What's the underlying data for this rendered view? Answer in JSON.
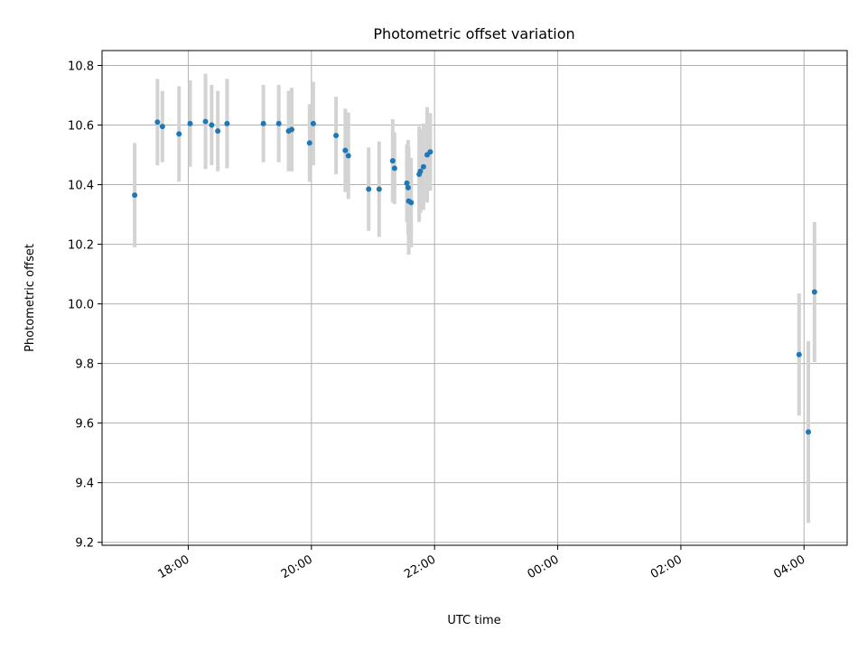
{
  "chart_data": {
    "type": "scatter",
    "title": "Photometric offset variation",
    "xlabel": "UTC time",
    "ylabel": "Photometric offset",
    "x_ticks": [
      "18:00",
      "20:00",
      "22:00",
      "00:00",
      "02:00",
      "04:00"
    ],
    "x_tick_hours": [
      18,
      20,
      22,
      24,
      26,
      28
    ],
    "xlim_hours": [
      16.6,
      28.7
    ],
    "y_ticks": [
      "9.2",
      "9.4",
      "9.6",
      "9.8",
      "10.0",
      "10.2",
      "10.4",
      "10.6",
      "10.8"
    ],
    "y_tick_values": [
      9.2,
      9.4,
      9.6,
      9.8,
      10.0,
      10.2,
      10.4,
      10.6,
      10.8
    ],
    "ylim": [
      9.19,
      10.85
    ],
    "grid": true,
    "marker_color": "#1f77b4",
    "errorbar_color": "#d3d3d3",
    "points": [
      {
        "t": 17.13,
        "y": 10.365,
        "err": 0.175
      },
      {
        "t": 17.5,
        "y": 10.61,
        "err": 0.145
      },
      {
        "t": 17.58,
        "y": 10.595,
        "err": 0.12
      },
      {
        "t": 17.85,
        "y": 10.57,
        "err": 0.16
      },
      {
        "t": 18.03,
        "y": 10.605,
        "err": 0.145
      },
      {
        "t": 18.28,
        "y": 10.612,
        "err": 0.16
      },
      {
        "t": 18.38,
        "y": 10.6,
        "err": 0.135
      },
      {
        "t": 18.48,
        "y": 10.58,
        "err": 0.135
      },
      {
        "t": 18.63,
        "y": 10.605,
        "err": 0.15
      },
      {
        "t": 19.22,
        "y": 10.605,
        "err": 0.13
      },
      {
        "t": 19.47,
        "y": 10.605,
        "err": 0.13
      },
      {
        "t": 19.63,
        "y": 10.58,
        "err": 0.135
      },
      {
        "t": 19.68,
        "y": 10.585,
        "err": 0.14
      },
      {
        "t": 19.97,
        "y": 10.54,
        "err": 0.13
      },
      {
        "t": 20.03,
        "y": 10.605,
        "err": 0.14
      },
      {
        "t": 20.4,
        "y": 10.565,
        "err": 0.13
      },
      {
        "t": 20.55,
        "y": 10.515,
        "err": 0.14
      },
      {
        "t": 20.6,
        "y": 10.497,
        "err": 0.145
      },
      {
        "t": 20.93,
        "y": 10.385,
        "err": 0.14
      },
      {
        "t": 21.1,
        "y": 10.385,
        "err": 0.16
      },
      {
        "t": 21.32,
        "y": 10.48,
        "err": 0.14
      },
      {
        "t": 21.35,
        "y": 10.455,
        "err": 0.12
      },
      {
        "t": 21.55,
        "y": 10.405,
        "err": 0.13
      },
      {
        "t": 21.57,
        "y": 10.39,
        "err": 0.16
      },
      {
        "t": 21.58,
        "y": 10.345,
        "err": 0.18
      },
      {
        "t": 21.62,
        "y": 10.34,
        "err": 0.15
      },
      {
        "t": 21.75,
        "y": 10.435,
        "err": 0.16
      },
      {
        "t": 21.77,
        "y": 10.445,
        "err": 0.14
      },
      {
        "t": 21.82,
        "y": 10.46,
        "err": 0.145
      },
      {
        "t": 21.88,
        "y": 10.5,
        "err": 0.16
      },
      {
        "t": 21.93,
        "y": 10.51,
        "err": 0.13
      },
      {
        "t": 27.92,
        "y": 9.83,
        "err": 0.205
      },
      {
        "t": 28.07,
        "y": 9.57,
        "err": 0.305
      },
      {
        "t": 28.17,
        "y": 10.04,
        "err": 0.235
      }
    ]
  }
}
